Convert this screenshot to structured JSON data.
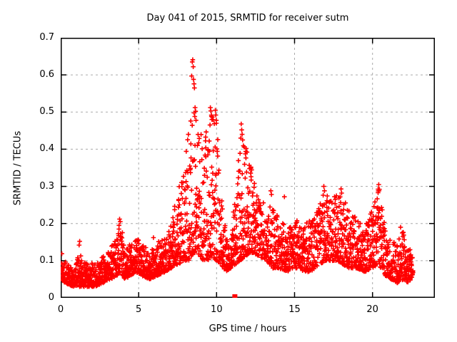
{
  "figure": {
    "title": "Day 041 of 2015, SRMTID for receiver sutm",
    "xlabel": "GPS time / hours",
    "ylabel": "SRMTID / TECUs"
  },
  "chart_data": {
    "type": "scatter",
    "title": "Day 041 of 2015, SRMTID for receiver sutm",
    "xlabel": "GPS time / hours",
    "ylabel": "SRMTID / TECUs",
    "xlim": [
      0,
      24
    ],
    "ylim": [
      0,
      0.7
    ],
    "xtick_values": [
      0,
      5,
      10,
      15,
      20
    ],
    "xtick_labels": [
      "0",
      "5",
      "10",
      "15",
      "20"
    ],
    "ytick_values": [
      0,
      0.1,
      0.2,
      0.3,
      0.4,
      0.5,
      0.6,
      0.7
    ],
    "ytick_labels": [
      "0",
      "0.1",
      "0.2",
      "0.3",
      "0.4",
      "0.5",
      "0.6",
      "0.7"
    ],
    "grid": "dashed",
    "grid_color": "#aaaaaa",
    "frame_color": "#000000",
    "marker": "plus",
    "marker_color": "#ff0000",
    "series_name": "SRMTID",
    "seed": 41,
    "points_per_hour": 115,
    "skew": 1.65,
    "envelope": [
      [
        0.02,
        0.05,
        0.13
      ],
      [
        0.3,
        0.04,
        0.1
      ],
      [
        0.8,
        0.03,
        0.08
      ],
      [
        1.2,
        0.03,
        0.12
      ],
      [
        1.7,
        0.03,
        0.09
      ],
      [
        2.2,
        0.03,
        0.1
      ],
      [
        2.7,
        0.04,
        0.11
      ],
      [
        3.2,
        0.05,
        0.13
      ],
      [
        3.6,
        0.06,
        0.19
      ],
      [
        3.85,
        0.07,
        0.21
      ],
      [
        4.1,
        0.05,
        0.13
      ],
      [
        4.5,
        0.06,
        0.15
      ],
      [
        4.8,
        0.07,
        0.17
      ],
      [
        5.2,
        0.06,
        0.15
      ],
      [
        5.7,
        0.05,
        0.13
      ],
      [
        6.2,
        0.06,
        0.15
      ],
      [
        6.7,
        0.07,
        0.16
      ],
      [
        7.1,
        0.08,
        0.2
      ],
      [
        7.5,
        0.09,
        0.3
      ],
      [
        7.9,
        0.1,
        0.36
      ],
      [
        8.2,
        0.1,
        0.45
      ],
      [
        8.5,
        0.12,
        0.53
      ],
      [
        8.8,
        0.12,
        0.5
      ],
      [
        9.1,
        0.1,
        0.42
      ],
      [
        9.4,
        0.1,
        0.46
      ],
      [
        9.7,
        0.11,
        0.51
      ],
      [
        10.0,
        0.1,
        0.48
      ],
      [
        10.3,
        0.09,
        0.28
      ],
      [
        10.6,
        0.07,
        0.18
      ],
      [
        10.9,
        0.08,
        0.14
      ],
      [
        11.2,
        0.09,
        0.3
      ],
      [
        11.5,
        0.1,
        0.44
      ],
      [
        11.8,
        0.11,
        0.42
      ],
      [
        12.1,
        0.12,
        0.38
      ],
      [
        12.4,
        0.12,
        0.32
      ],
      [
        12.8,
        0.11,
        0.28
      ],
      [
        13.2,
        0.1,
        0.26
      ],
      [
        13.6,
        0.08,
        0.24
      ],
      [
        14.0,
        0.08,
        0.22
      ],
      [
        14.5,
        0.07,
        0.19
      ],
      [
        15.0,
        0.08,
        0.22
      ],
      [
        15.5,
        0.07,
        0.2
      ],
      [
        16.0,
        0.07,
        0.21
      ],
      [
        16.5,
        0.08,
        0.24
      ],
      [
        16.9,
        0.1,
        0.29
      ],
      [
        17.3,
        0.1,
        0.26
      ],
      [
        17.7,
        0.1,
        0.28
      ],
      [
        18.1,
        0.09,
        0.27
      ],
      [
        18.5,
        0.08,
        0.24
      ],
      [
        19.0,
        0.08,
        0.21
      ],
      [
        19.5,
        0.07,
        0.19
      ],
      [
        20.0,
        0.08,
        0.24
      ],
      [
        20.4,
        0.09,
        0.3
      ],
      [
        20.8,
        0.06,
        0.19
      ],
      [
        21.2,
        0.05,
        0.15
      ],
      [
        21.6,
        0.04,
        0.16
      ],
      [
        22.0,
        0.05,
        0.18
      ],
      [
        22.3,
        0.04,
        0.13
      ],
      [
        22.6,
        0.06,
        0.13
      ]
    ],
    "outliers": [
      [
        1.22,
        0.152
      ],
      [
        1.18,
        0.142
      ],
      [
        3.78,
        0.212
      ],
      [
        3.82,
        0.205
      ],
      [
        3.74,
        0.195
      ],
      [
        5.95,
        0.162
      ],
      [
        8.4,
        0.597
      ],
      [
        8.44,
        0.635
      ],
      [
        8.47,
        0.641
      ],
      [
        8.5,
        0.622
      ],
      [
        8.52,
        0.588
      ],
      [
        8.55,
        0.576
      ],
      [
        8.58,
        0.565
      ],
      [
        8.62,
        0.512
      ],
      [
        8.65,
        0.502
      ],
      [
        8.6,
        0.488
      ],
      [
        8.68,
        0.478
      ],
      [
        9.6,
        0.512
      ],
      [
        9.63,
        0.503
      ],
      [
        9.67,
        0.492
      ],
      [
        9.7,
        0.48
      ],
      [
        9.92,
        0.505
      ],
      [
        9.95,
        0.492
      ],
      [
        9.98,
        0.478
      ],
      [
        11.58,
        0.468
      ],
      [
        11.61,
        0.452
      ],
      [
        11.64,
        0.44
      ],
      [
        11.55,
        0.43
      ],
      [
        11.67,
        0.425
      ],
      [
        11.9,
        0.402
      ],
      [
        11.95,
        0.392
      ],
      [
        12.2,
        0.352
      ],
      [
        13.48,
        0.288
      ],
      [
        13.52,
        0.278
      ],
      [
        14.35,
        0.272
      ],
      [
        16.88,
        0.3
      ],
      [
        16.92,
        0.288
      ],
      [
        17.98,
        0.293
      ],
      [
        18.02,
        0.282
      ],
      [
        20.4,
        0.305
      ],
      [
        20.44,
        0.292
      ],
      [
        20.36,
        0.283
      ],
      [
        21.8,
        0.19
      ]
    ],
    "square_marker": {
      "x": 11.17,
      "y": 0.0
    }
  }
}
